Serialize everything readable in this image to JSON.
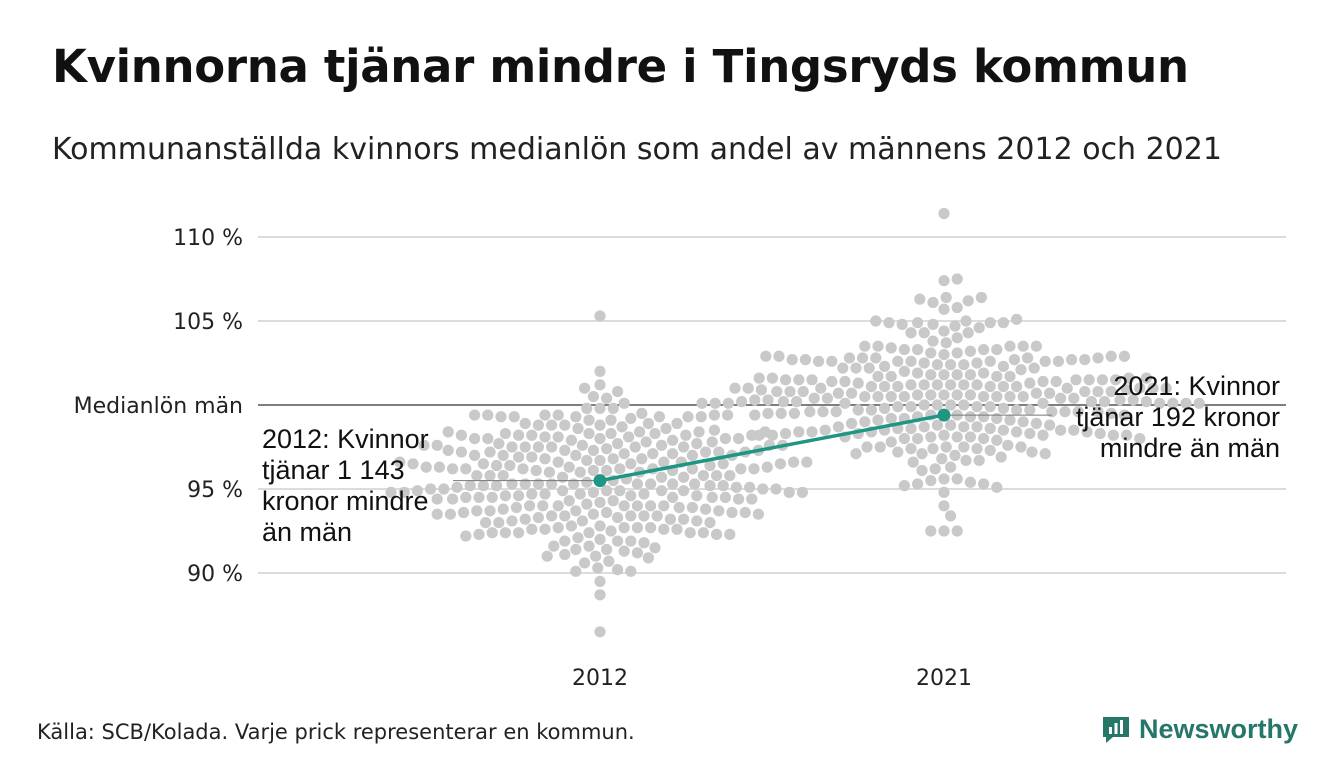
{
  "header": {
    "title": "Kvinnorna tjänar mindre i Tingsryds kommun",
    "subtitle": "Kommunanställda kvinnors medianlön som andel av männens 2012 och 2021"
  },
  "chart_data": {
    "type": "scatter",
    "subtype": "beeswarm-with-highlight-line",
    "ylim": [
      85.5,
      112.5
    ],
    "yticks": [
      {
        "value": 90,
        "label": "90 %"
      },
      {
        "value": 95,
        "label": "95 %"
      },
      {
        "value": 100,
        "label": "Medianlön män"
      },
      {
        "value": 105,
        "label": "105 %"
      },
      {
        "value": 110,
        "label": "110 %"
      }
    ],
    "reference_line": {
      "value": 100
    },
    "categories": [
      "2012",
      "2021"
    ],
    "background_distribution": [
      {
        "category": "2012",
        "center": 95.5,
        "spread": 2.6,
        "min": 86.5,
        "max": 105.3,
        "count": 290
      },
      {
        "category": "2021",
        "center": 100.6,
        "spread": 2.5,
        "min": 92.5,
        "max": 111.4,
        "count": 290
      }
    ],
    "highlight": {
      "name": "Tingsryd",
      "color": "#1f9683",
      "points": [
        {
          "x": "2012",
          "y": 95.5
        },
        {
          "x": "2021",
          "y": 99.4
        }
      ]
    },
    "annotations": [
      {
        "category": "2012",
        "lines": [
          "2012: Kvinnor",
          "tjänar 1 143",
          "kronor mindre",
          "än män"
        ]
      },
      {
        "category": "2021",
        "lines": [
          "2021: Kvinnor",
          "tjänar 192 kronor",
          "mindre än män"
        ]
      }
    ],
    "dot_color": "#c9c9c9",
    "grid": true
  },
  "footer": {
    "source": "Källa: SCB/Kolada. Varje prick representerar en kommun.",
    "brand": "Newsworthy",
    "brand_icon": "newsworthy-logo-icon",
    "brand_color": "#27766a"
  }
}
